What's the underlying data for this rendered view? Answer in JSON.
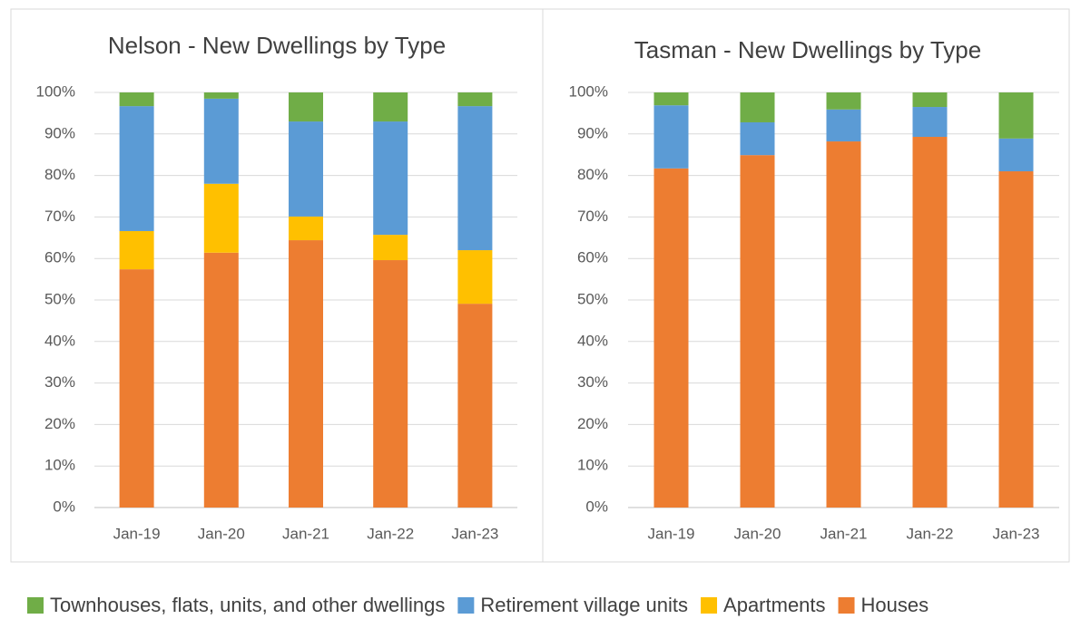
{
  "chart_data": [
    {
      "type": "stacked_bar",
      "title": "Nelson - New Dwellings by Type",
      "categories": [
        "Jan-19",
        "Jan-20",
        "Jan-21",
        "Jan-22",
        "Jan-23"
      ],
      "series": [
        {
          "name": "Townhouses, flats, units, and other dwellings",
          "color": "#70ad47",
          "values": [
            3.3,
            1.5,
            7.0,
            7.0,
            3.3
          ]
        },
        {
          "name": "Retirement village units",
          "color": "#5b9bd5",
          "values": [
            30.1,
            20.5,
            22.9,
            27.3,
            34.7
          ]
        },
        {
          "name": "Apartments",
          "color": "#ffc000",
          "values": [
            9.2,
            16.6,
            5.7,
            6.1,
            12.9
          ]
        },
        {
          "name": "Houses",
          "color": "#ed7d31",
          "values": [
            57.4,
            61.4,
            64.4,
            59.6,
            49.1
          ]
        }
      ],
      "ylim": [
        0,
        100
      ],
      "yticks": [
        {
          "value": 0,
          "label": "0%"
        },
        {
          "value": 10,
          "label": "10%"
        },
        {
          "value": 20,
          "label": "20%"
        },
        {
          "value": 30,
          "label": "30%"
        },
        {
          "value": 40,
          "label": "40%"
        },
        {
          "value": 50,
          "label": "50%"
        },
        {
          "value": 60,
          "label": "60%"
        },
        {
          "value": 70,
          "label": "70%"
        },
        {
          "value": 80,
          "label": "80%"
        },
        {
          "value": 90,
          "label": "90%"
        },
        {
          "value": 100,
          "label": "100%"
        }
      ],
      "grid": true,
      "legend": "bottom"
    },
    {
      "type": "stacked_bar",
      "title": "Tasman - New Dwellings by Type",
      "categories": [
        "Jan-19",
        "Jan-20",
        "Jan-21",
        "Jan-22",
        "Jan-23"
      ],
      "series": [
        {
          "name": "Townhouses, flats, units, and other dwellings",
          "color": "#70ad47",
          "values": [
            3.1,
            7.2,
            4.1,
            3.5,
            11.1
          ]
        },
        {
          "name": "Retirement village units",
          "color": "#5b9bd5",
          "values": [
            15.2,
            7.9,
            7.7,
            7.2,
            7.9
          ]
        },
        {
          "name": "Apartments",
          "color": "#ffc000",
          "values": [
            0,
            0,
            0,
            0,
            0
          ]
        },
        {
          "name": "Houses",
          "color": "#ed7d31",
          "values": [
            81.7,
            84.9,
            88.2,
            89.3,
            81.0
          ]
        }
      ],
      "ylim": [
        0,
        100
      ],
      "yticks": [
        {
          "value": 0,
          "label": "0%"
        },
        {
          "value": 10,
          "label": "10%"
        },
        {
          "value": 20,
          "label": "20%"
        },
        {
          "value": 30,
          "label": "30%"
        },
        {
          "value": 40,
          "label": "40%"
        },
        {
          "value": 50,
          "label": "50%"
        },
        {
          "value": 60,
          "label": "60%"
        },
        {
          "value": 70,
          "label": "70%"
        },
        {
          "value": 80,
          "label": "80%"
        },
        {
          "value": 90,
          "label": "90%"
        },
        {
          "value": 100,
          "label": "100%"
        }
      ],
      "grid": true,
      "legend": "bottom"
    }
  ]
}
